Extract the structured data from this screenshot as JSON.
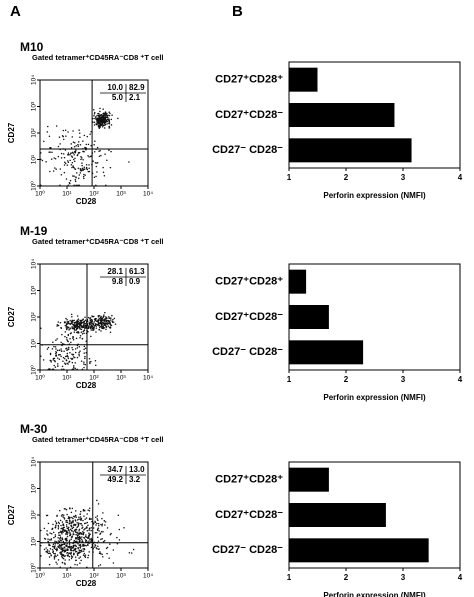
{
  "panel_labels": [
    "A",
    "B"
  ],
  "chart_data": [
    {
      "type": "dotplot",
      "title": "M10",
      "subtitle": "Gated tetramer⁺CD45RA⁻CD8 ⁺T cell",
      "xlabel": "CD28",
      "ylabel": "CD27",
      "log_scale": true,
      "xlim": [
        1,
        10000
      ],
      "ylim": [
        1,
        10000
      ],
      "xticks": [
        {
          "value": 1,
          "label": "10⁰"
        },
        {
          "value": 10,
          "label": "10¹"
        },
        {
          "value": 100,
          "label": "10²"
        },
        {
          "value": 1000,
          "label": "10³"
        },
        {
          "value": 10000,
          "label": "10⁴"
        }
      ],
      "yticks": [
        {
          "value": 1,
          "label": "10⁰"
        },
        {
          "value": 10,
          "label": "10¹"
        },
        {
          "value": 100,
          "label": "10²"
        },
        {
          "value": 1000,
          "label": "10³"
        },
        {
          "value": 10000,
          "label": "10⁴"
        }
      ],
      "gate_x": 85,
      "gate_y": 25,
      "values": [
        10.0,
        82.9,
        5.0,
        2.1
      ],
      "value_labels": [
        "10.0",
        "82.9",
        "5.0",
        "2.1"
      ]
    },
    {
      "type": "bar",
      "orientation": "horizontal",
      "categories": [
        "CD27⁺CD28⁺",
        "CD27⁺CD28⁻",
        "CD27⁻ CD28⁻"
      ],
      "values": [
        1.5,
        2.85,
        3.15
      ],
      "color": "#000000",
      "xlabel": "Perforin expression  (NMFI)",
      "xlim": [
        1,
        4
      ],
      "xticks": [
        1,
        2,
        3,
        4
      ]
    },
    {
      "type": "dotplot",
      "title": "M-19",
      "subtitle": "Gated tetramer⁺CD45RA⁻CD8 ⁺T cell",
      "xlabel": "CD28",
      "ylabel": "CD27",
      "log_scale": true,
      "xlim": [
        1,
        10000
      ],
      "ylim": [
        1,
        10000
      ],
      "xticks": [
        {
          "value": 1,
          "label": "10⁰"
        },
        {
          "value": 10,
          "label": "10¹"
        },
        {
          "value": 100,
          "label": "10²"
        },
        {
          "value": 1000,
          "label": "10³"
        },
        {
          "value": 10000,
          "label": "10⁴"
        }
      ],
      "yticks": [
        {
          "value": 1,
          "label": "10⁰"
        },
        {
          "value": 10,
          "label": "10¹"
        },
        {
          "value": 100,
          "label": "10²"
        },
        {
          "value": 1000,
          "label": "10³"
        },
        {
          "value": 10000,
          "label": "10⁴"
        }
      ],
      "gate_x": 55,
      "gate_y": 9,
      "values": [
        28.1,
        61.3,
        9.8,
        0.9
      ]
    },
    {
      "type": "bar",
      "orientation": "horizontal",
      "categories": [
        "CD27⁺CD28⁺",
        "CD27⁺CD28⁻",
        "CD27⁻ CD28⁻"
      ],
      "values": [
        1.3,
        1.7,
        2.3
      ],
      "color": "#000000",
      "xlabel": "Perforin expression  (NMFI)",
      "xlim": [
        1,
        4
      ],
      "xticks": [
        1,
        2,
        3,
        4
      ]
    },
    {
      "type": "dotplot",
      "title": "M-30",
      "subtitle": "Gated tetramer⁺CD45RA⁻CD8 ⁺T cell",
      "xlabel": "CD28",
      "ylabel": "CD27",
      "log_scale": true,
      "xlim": [
        1,
        10000
      ],
      "ylim": [
        1,
        10000
      ],
      "xticks": [
        {
          "value": 1,
          "label": "10⁰"
        },
        {
          "value": 10,
          "label": "10¹"
        },
        {
          "value": 100,
          "label": "10²"
        },
        {
          "value": 1000,
          "label": "10³"
        },
        {
          "value": 10000,
          "label": "10⁴"
        }
      ],
      "yticks": [
        {
          "value": 1,
          "label": "10⁰"
        },
        {
          "value": 10,
          "label": "10¹"
        },
        {
          "value": 100,
          "label": "10²"
        },
        {
          "value": 1000,
          "label": "10³"
        },
        {
          "value": 10000,
          "label": "10⁴"
        }
      ],
      "gate_x": 90,
      "gate_y": 9,
      "values": [
        34.7,
        13.0,
        49.2,
        3.2
      ],
      "value_labels": [
        "34.7",
        "13.0",
        "49.2",
        "3.2"
      ]
    },
    {
      "type": "bar",
      "orientation": "horizontal",
      "categories": [
        "CD27⁺CD28⁺",
        "CD27⁺CD28⁻",
        "CD27⁻ CD28⁻"
      ],
      "values": [
        1.7,
        2.7,
        3.45
      ],
      "color": "#000000",
      "xlabel": "Perforin expression  (NMFI)",
      "xlim": [
        1,
        4
      ],
      "xticks": [
        1,
        2,
        3,
        4
      ]
    }
  ]
}
